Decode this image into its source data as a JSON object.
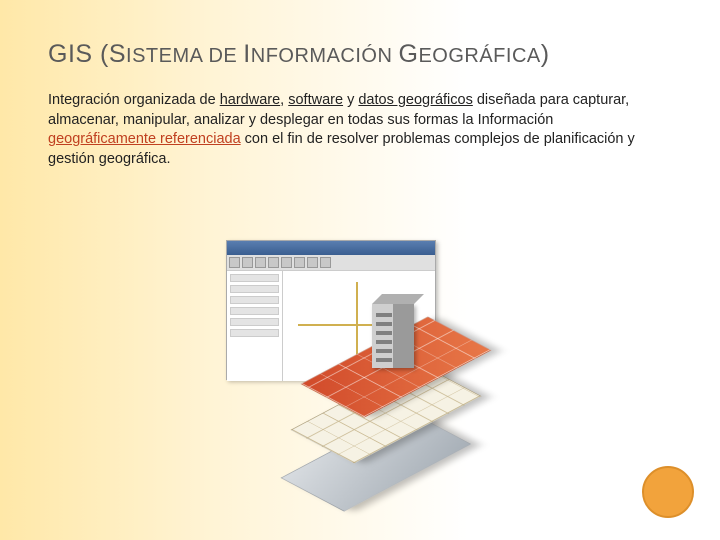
{
  "title": {
    "prefix": "GIS (",
    "word1_big": "S",
    "word1_rest": "ISTEMA",
    "sep1": " DE ",
    "word2_big": "I",
    "word2_rest": "NFORMACIÓN",
    "sep2": " ",
    "word3_big": "G",
    "word3_rest": "EOGRÁFICA",
    "suffix": ")"
  },
  "paragraph": {
    "p0": "Integración organizada de ",
    "hw": "hardware",
    "p1": ", ",
    "sw": "software",
    "p2": " y ",
    "dg": "datos geográficos",
    "p3": " diseñada para capturar, almacenar, manipular, analizar y desplegar en todas sus formas la Información ",
    "gr": "geográficamente referenciada",
    "p4": " con el fin de resolver problemas complejos de planificación y gestión geográfica."
  },
  "colors": {
    "accent_circle": "#f2a33c",
    "layer_red": "#d14a2a",
    "layer_tan": "#f6f2e4",
    "layer_gray": "#c0c6cc",
    "link_red": "#c04020"
  }
}
